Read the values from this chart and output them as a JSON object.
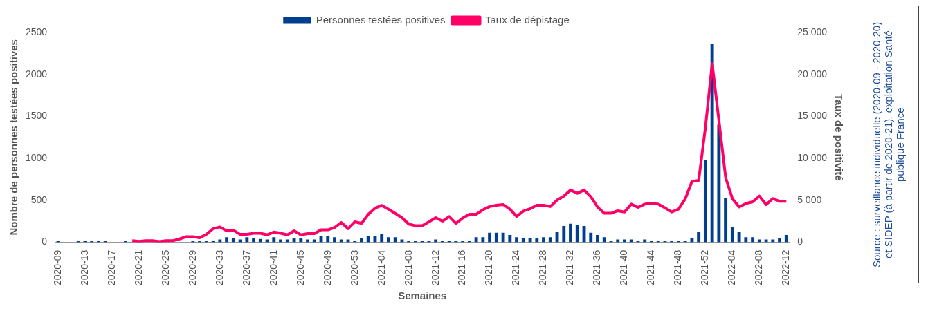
{
  "chart_data": {
    "type": "bar",
    "xlabel": "Semaines",
    "ylabel": "Nombre de personnes testées positives",
    "y2label": "Taux de positivité",
    "annotations": [
      "Source : surveillance individuelle (2020-09 - 2020-20) et SIDEP (à partir de 2020-21), exploitation Santé publique France"
    ],
    "categories": [
      "2020-09",
      null,
      null,
      null,
      "2020-13",
      null,
      null,
      null,
      "2020-17",
      null,
      null,
      null,
      "2020-21",
      null,
      null,
      null,
      "2020-25",
      null,
      null,
      null,
      "2020-29",
      null,
      null,
      null,
      "2020-33",
      null,
      null,
      null,
      "2020-37",
      null,
      null,
      null,
      "2020-41",
      null,
      null,
      null,
      "2020-45",
      null,
      null,
      null,
      "2020-49",
      null,
      null,
      null,
      "2020-53",
      null,
      null,
      null,
      "2021-04",
      null,
      null,
      null,
      "2021-08",
      null,
      null,
      null,
      "2021-12",
      null,
      null,
      null,
      "2021-16",
      null,
      null,
      null,
      "2021-20",
      null,
      null,
      null,
      "2021-24",
      null,
      null,
      null,
      "2021-28",
      null,
      null,
      null,
      "2021-32",
      null,
      null,
      null,
      "2021-36",
      null,
      null,
      null,
      "2021-40",
      null,
      null,
      null,
      "2021-44",
      null,
      null,
      null,
      "2021-48",
      null,
      null,
      null,
      "2021-52",
      null,
      null,
      null,
      "2022-04",
      null,
      null,
      null,
      "2022-08",
      null,
      null,
      null,
      "2022-12"
    ],
    "series": [
      {
        "name": "Personnes testées positives",
        "color": "#003f8f",
        "values": [
          19,
          null,
          null,
          19,
          19,
          19,
          19,
          19,
          null,
          null,
          19,
          null,
          null,
          null,
          null,
          null,
          null,
          null,
          null,
          null,
          19,
          19,
          19,
          19,
          33,
          60,
          46,
          33,
          60,
          46,
          41,
          33,
          60,
          33,
          33,
          46,
          46,
          33,
          33,
          73,
          73,
          60,
          33,
          33,
          19,
          46,
          73,
          73,
          100,
          60,
          60,
          33,
          19,
          19,
          19,
          19,
          33,
          19,
          19,
          19,
          19,
          19,
          60,
          60,
          114,
          114,
          114,
          87,
          60,
          46,
          46,
          46,
          60,
          60,
          127,
          195,
          222,
          208,
          195,
          114,
          87,
          60,
          19,
          33,
          33,
          33,
          19,
          33,
          19,
          19,
          19,
          19,
          19,
          19,
          46,
          127,
          981,
          2360,
          1400,
          528,
          182,
          127,
          60,
          60,
          33,
          33,
          33,
          46,
          87
        ]
      },
      {
        "name": "Taux de dépistage",
        "type": "line",
        "axis": "y2",
        "color": "#ff0066",
        "values": [
          null,
          null,
          null,
          null,
          null,
          null,
          null,
          null,
          null,
          null,
          null,
          190,
          120,
          190,
          190,
          100,
          190,
          190,
          400,
          670,
          670,
          540,
          950,
          1630,
          1830,
          1360,
          1440,
          950,
          950,
          1080,
          1080,
          900,
          1220,
          1080,
          900,
          1360,
          900,
          1040,
          1040,
          1490,
          1490,
          1760,
          2360,
          1630,
          2440,
          2250,
          3340,
          4070,
          4400,
          3940,
          3450,
          2930,
          2170,
          1980,
          1980,
          2440,
          2930,
          2520,
          3070,
          2250,
          2900,
          3340,
          3340,
          3880,
          4260,
          4420,
          4500,
          3950,
          3080,
          3730,
          4000,
          4420,
          4420,
          4260,
          5030,
          5510,
          6240,
          5840,
          6240,
          5430,
          4210,
          3460,
          3460,
          3760,
          3620,
          4550,
          4170,
          4550,
          4660,
          4550,
          4100,
          3620,
          3950,
          5160,
          7250,
          7380,
          13700,
          21300,
          14500,
          7700,
          5200,
          4210,
          4620,
          4830,
          5510,
          4500,
          5210,
          4890,
          4890
        ]
      }
    ],
    "ylim": [
      0,
      2500
    ],
    "yticks": [
      0,
      500,
      1000,
      1500,
      2000,
      2500
    ],
    "y2lim": [
      0,
      25000
    ],
    "y2ticks": [
      0,
      {
        "value": 5000,
        "label": "5 000"
      },
      {
        "value": 10000,
        "label": "10 000"
      },
      {
        "value": 15000,
        "label": "15 000"
      },
      {
        "value": 20000,
        "label": "20 000"
      },
      {
        "value": 25000,
        "label": "25 000"
      }
    ],
    "grid": false,
    "legend": "top"
  }
}
